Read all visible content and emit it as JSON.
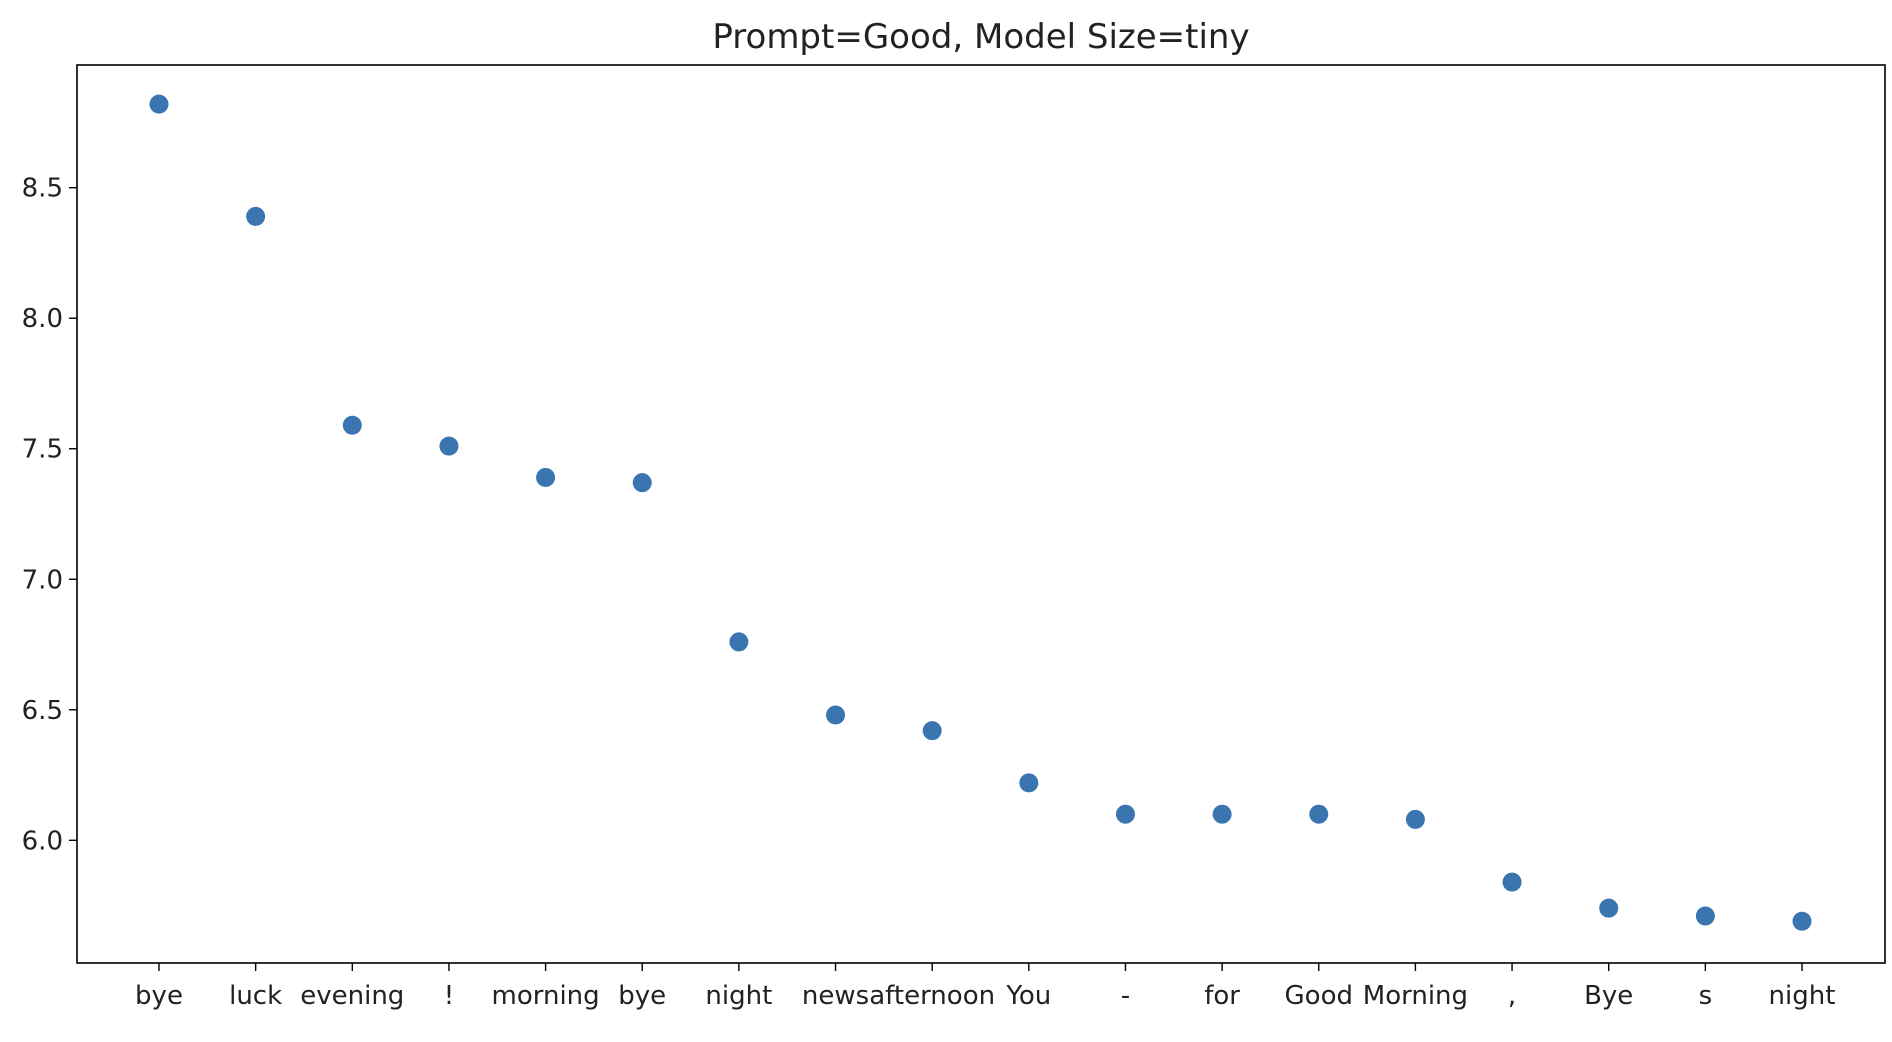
{
  "chart_data": {
    "type": "scatter",
    "title": "Prompt=Good, Model Size=tiny",
    "xlabel": "",
    "ylabel": "",
    "categories": [
      "bye",
      "luck",
      "evening",
      "!",
      "morning",
      "bye",
      "night",
      "news",
      "afternoon",
      "You",
      "-",
      "for",
      "Good",
      "Morning",
      ",",
      "Bye",
      "s",
      "night"
    ],
    "values": [
      8.82,
      8.39,
      7.59,
      7.51,
      7.39,
      7.37,
      6.76,
      6.48,
      6.42,
      6.22,
      6.1,
      6.1,
      6.1,
      6.08,
      5.84,
      5.74,
      5.71,
      5.69
    ],
    "yticks": [
      6.0,
      6.5,
      7.0,
      7.5,
      8.0,
      8.5
    ],
    "ylim": [
      5.53,
      8.97
    ],
    "grid": false,
    "marker_color": "#3a75b0"
  }
}
